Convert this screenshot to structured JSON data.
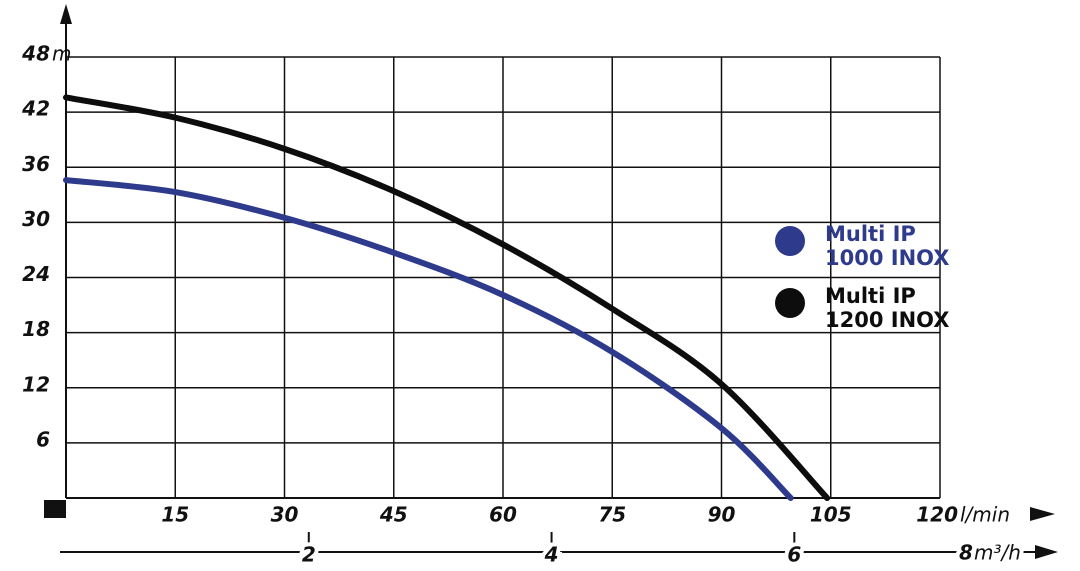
{
  "chart_data": {
    "type": "line",
    "y_unit": "m",
    "x_unit": "l/min",
    "x2_unit": "m³/h",
    "xlim": [
      0,
      120
    ],
    "xticks": [
      15,
      30,
      45,
      60,
      75,
      90,
      105,
      120
    ],
    "ylim": [
      0,
      48
    ],
    "yticks": [
      6,
      12,
      18,
      24,
      30,
      36,
      42,
      48
    ],
    "x2lim": [
      0,
      7.2
    ],
    "x2ticks": [
      2,
      4,
      6,
      8
    ],
    "grid": true,
    "legend": "right",
    "series": [
      {
        "name": "Multi IP 1000 INOX",
        "color": "#2e3a8c",
        "x": [
          0,
          15,
          30,
          45,
          60,
          75,
          90,
          99.5
        ],
        "values": [
          34.6,
          33.3,
          30.5,
          26.7,
          22.1,
          15.9,
          7.6,
          0
        ]
      },
      {
        "name": "Multi IP 1200 INOX",
        "color": "#0d0d0d",
        "x": [
          0,
          15,
          30,
          45,
          60,
          75,
          90,
          104.5
        ],
        "values": [
          43.6,
          41.4,
          38,
          33.4,
          27.6,
          20.6,
          12.4,
          0
        ]
      }
    ]
  }
}
